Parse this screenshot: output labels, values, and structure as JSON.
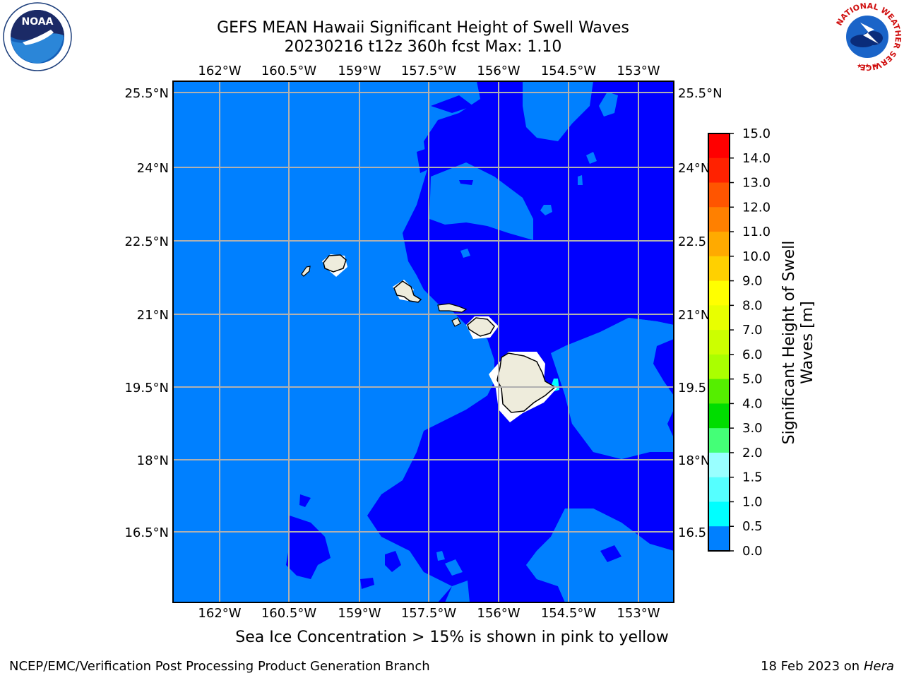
{
  "header": {
    "title_line1": "GEFS MEAN Hawaii Significant Height of Swell Waves",
    "title_line2": "20230216 t12z 360h fcst   Max: 1.10"
  },
  "map": {
    "lon_labels": [
      "162°W",
      "160.5°W",
      "159°W",
      "157.5°W",
      "156°W",
      "154.5°W",
      "153°W"
    ],
    "lat_labels": [
      "25.5°N",
      "24°N",
      "22.5°N",
      "21°N",
      "19.5°N",
      "18°N",
      "16.5°N"
    ],
    "lat_labels_right": [
      "25.5°N",
      "24°N",
      "22.5",
      "21°N",
      "19.5",
      "18°N",
      "16.5"
    ],
    "islands": [
      "Kauai",
      "Oahu",
      "Molokai",
      "Maui",
      "Hawaii"
    ],
    "colors": {
      "band_0_0p5": "#0000ff",
      "band_0p5_1": "#0080ff",
      "band_1_1p5": "#00ffff",
      "land": "#eeecdc",
      "grid": "#b0b0b0"
    }
  },
  "colorbar": {
    "label_line1": "Significant Height of Swell",
    "label_line2": "Waves [m]",
    "ticks": [
      "15.0",
      "14.0",
      "13.0",
      "12.0",
      "11.0",
      "10.0",
      "9.0",
      "8.0",
      "7.0",
      "6.0",
      "5.0",
      "4.0",
      "3.0",
      "2.0",
      "1.5",
      "1.0",
      "0.5",
      "0.0"
    ],
    "colors": [
      "#ff0000",
      "#ff2200",
      "#ff5500",
      "#ff8000",
      "#ffaa00",
      "#ffd000",
      "#ffff00",
      "#e8ff00",
      "#ccff00",
      "#aaff00",
      "#55ee00",
      "#00dd00",
      "#44ff77",
      "#99ffff",
      "#55ffff",
      "#00ffff",
      "#0080ff",
      "#0000ff"
    ]
  },
  "caption": "Sea Ice Concentration > 15% is shown in pink to yellow",
  "footer": {
    "left": "NCEP/EMC/Verification Post Processing Product Generation Branch",
    "right_date": "18 Feb 2023 on",
    "right_host": "Hera"
  },
  "logos": {
    "left": "noaa-logo",
    "right": "nws-logo",
    "right_text": "NATIONAL WEATHER SERVICE"
  }
}
